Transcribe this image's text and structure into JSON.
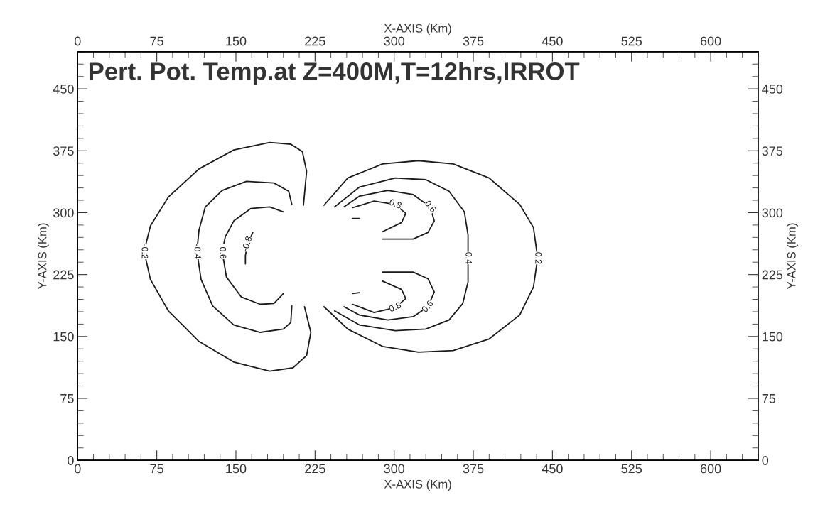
{
  "chart_data": {
    "type": "line",
    "title": "Pert. Pot. Temp.at Z=400M,T=12hrs,IRROT",
    "xlabel": "X-AXIS (Km)",
    "x2label": "X-AXIS (Km)",
    "ylabel": "Y-AXIS (Km)",
    "y2label": "Y-AXIS (Km)",
    "xlim": [
      0,
      645
    ],
    "x2lim": [
      0,
      645
    ],
    "ylim": [
      0,
      495
    ],
    "y2lim": [
      0,
      495
    ],
    "xticks": [
      0,
      {
        "value": 15,
        "label": null
      },
      {
        "value": 30,
        "label": null
      },
      {
        "value": 45,
        "label": null
      },
      {
        "value": 60,
        "label": null
      },
      75,
      {
        "value": 90,
        "label": null
      },
      {
        "value": 105,
        "label": null
      },
      {
        "value": 120,
        "label": null
      },
      {
        "value": 135,
        "label": null
      },
      150,
      {
        "value": 165,
        "label": null
      },
      {
        "value": 180,
        "label": null
      },
      {
        "value": 195,
        "label": null
      },
      {
        "value": 210,
        "label": null
      },
      225,
      {
        "value": 240,
        "label": null
      },
      {
        "value": 255,
        "label": null
      },
      {
        "value": 270,
        "label": null
      },
      {
        "value": 285,
        "label": null
      },
      300,
      {
        "value": 315,
        "label": null
      },
      {
        "value": 330,
        "label": null
      },
      {
        "value": 345,
        "label": null
      },
      {
        "value": 360,
        "label": null
      },
      375,
      {
        "value": 390,
        "label": null
      },
      {
        "value": 405,
        "label": null
      },
      {
        "value": 420,
        "label": null
      },
      {
        "value": 435,
        "label": null
      },
      450,
      {
        "value": 465,
        "label": null
      },
      {
        "value": 480,
        "label": null
      },
      {
        "value": 495,
        "label": null
      },
      {
        "value": 510,
        "label": null
      },
      525,
      {
        "value": 540,
        "label": null
      },
      {
        "value": 555,
        "label": null
      },
      {
        "value": 570,
        "label": null
      },
      {
        "value": 585,
        "label": null
      },
      600,
      {
        "value": 615,
        "label": null
      },
      {
        "value": 630,
        "label": null
      },
      {
        "value": 645,
        "label": null
      }
    ],
    "x2ticks": [
      0,
      {
        "value": 15,
        "label": null
      },
      {
        "value": 30,
        "label": null
      },
      {
        "value": 45,
        "label": null
      },
      {
        "value": 60,
        "label": null
      },
      75,
      {
        "value": 90,
        "label": null
      },
      {
        "value": 105,
        "label": null
      },
      {
        "value": 120,
        "label": null
      },
      {
        "value": 135,
        "label": null
      },
      150,
      {
        "value": 165,
        "label": null
      },
      {
        "value": 180,
        "label": null
      },
      {
        "value": 195,
        "label": null
      },
      {
        "value": 210,
        "label": null
      },
      225,
      {
        "value": 240,
        "label": null
      },
      {
        "value": 255,
        "label": null
      },
      {
        "value": 270,
        "label": null
      },
      {
        "value": 285,
        "label": null
      },
      300,
      {
        "value": 315,
        "label": null
      },
      {
        "value": 330,
        "label": null
      },
      {
        "value": 345,
        "label": null
      },
      {
        "value": 360,
        "label": null
      },
      375,
      {
        "value": 390,
        "label": null
      },
      {
        "value": 405,
        "label": null
      },
      {
        "value": 420,
        "label": null
      },
      {
        "value": 435,
        "label": null
      },
      450,
      {
        "value": 465,
        "label": null
      },
      {
        "value": 480,
        "label": null
      },
      {
        "value": 495,
        "label": null
      },
      {
        "value": 510,
        "label": null
      },
      525,
      {
        "value": 540,
        "label": null
      },
      {
        "value": 555,
        "label": null
      },
      {
        "value": 570,
        "label": null
      },
      {
        "value": 585,
        "label": null
      },
      600,
      {
        "value": 615,
        "label": null
      },
      {
        "value": 630,
        "label": null
      },
      {
        "value": 645,
        "label": null
      }
    ],
    "yticks": [
      0,
      {
        "value": 15,
        "label": null
      },
      {
        "value": 30,
        "label": null
      },
      {
        "value": 45,
        "label": null
      },
      {
        "value": 60,
        "label": null
      },
      75,
      {
        "value": 90,
        "label": null
      },
      {
        "value": 105,
        "label": null
      },
      {
        "value": 120,
        "label": null
      },
      {
        "value": 135,
        "label": null
      },
      150,
      {
        "value": 165,
        "label": null
      },
      {
        "value": 180,
        "label": null
      },
      {
        "value": 195,
        "label": null
      },
      {
        "value": 210,
        "label": null
      },
      225,
      {
        "value": 240,
        "label": null
      },
      {
        "value": 255,
        "label": null
      },
      {
        "value": 270,
        "label": null
      },
      {
        "value": 285,
        "label": null
      },
      300,
      {
        "value": 315,
        "label": null
      },
      {
        "value": 330,
        "label": null
      },
      {
        "value": 345,
        "label": null
      },
      {
        "value": 360,
        "label": null
      },
      375,
      {
        "value": 390,
        "label": null
      },
      {
        "value": 405,
        "label": null
      },
      {
        "value": 420,
        "label": null
      },
      {
        "value": 435,
        "label": null
      },
      450,
      {
        "value": 465,
        "label": null
      },
      {
        "value": 480,
        "label": null
      },
      {
        "value": 495,
        "label": null
      }
    ],
    "y2ticks": [
      0,
      {
        "value": 15,
        "label": null
      },
      {
        "value": 30,
        "label": null
      },
      {
        "value": 45,
        "label": null
      },
      {
        "value": 60,
        "label": null
      },
      75,
      {
        "value": 90,
        "label": null
      },
      {
        "value": 105,
        "label": null
      },
      {
        "value": 120,
        "label": null
      },
      {
        "value": 135,
        "label": null
      },
      150,
      {
        "value": 165,
        "label": null
      },
      {
        "value": 180,
        "label": null
      },
      {
        "value": 195,
        "label": null
      },
      {
        "value": 210,
        "label": null
      },
      225,
      {
        "value": 240,
        "label": null
      },
      {
        "value": 255,
        "label": null
      },
      {
        "value": 270,
        "label": null
      },
      {
        "value": 285,
        "label": null
      },
      300,
      {
        "value": 315,
        "label": null
      },
      {
        "value": 330,
        "label": null
      },
      {
        "value": 345,
        "label": null
      },
      {
        "value": 360,
        "label": null
      },
      375,
      {
        "value": 390,
        "label": null
      },
      {
        "value": 405,
        "label": null
      },
      {
        "value": 420,
        "label": null
      },
      {
        "value": 435,
        "label": null
      },
      450,
      {
        "value": 465,
        "label": null
      },
      {
        "value": 480,
        "label": null
      },
      {
        "value": 495,
        "label": null
      }
    ],
    "series": [
      {
        "color": "#1a1a1a",
        "x": [
          214,
          217,
          213,
          202,
          182,
          148,
          115,
          86,
          69,
          63,
          69,
          86,
          115,
          148,
          182,
          204,
          217,
          221,
          215
        ],
        "values": [
          309,
          350,
          374,
          383,
          385,
          376,
          353,
          319,
          284,
          253,
          219,
          181,
          144,
          119,
          108,
          112,
          127,
          155,
          186
        ]
      },
      {
        "color": "#1a1a1a",
        "x": [
          203,
          200,
          186,
          160,
          137,
          121,
          115,
          113,
          117,
          128,
          148,
          173,
          195,
          202,
          203
        ],
        "values": [
          310,
          326,
          336,
          338,
          327,
          307,
          279,
          253,
          219,
          187,
          164,
          155,
          159,
          167,
          187
        ]
      },
      {
        "color": "#1a1a1a",
        "x": [
          195,
          182,
          164,
          148,
          140,
          137,
          141,
          155,
          173,
          186,
          195
        ],
        "values": [
          301,
          307,
          305,
          290,
          271,
          253,
          222,
          198,
          189,
          190,
          202
        ]
      },
      {
        "color": "#1a1a1a",
        "x": [
          166,
          161,
          159,
          159
        ],
        "values": [
          276,
          262,
          248,
          238
        ]
      },
      {
        "color": "#1a1a1a",
        "x": [
          233.5,
          256,
          289,
          323,
          356,
          390,
          419,
          432,
          436,
          432,
          419,
          390,
          356,
          323,
          289,
          256,
          233.5
        ],
        "values": [
          309,
          342,
          359,
          363,
          359,
          342,
          310,
          282,
          245,
          210,
          176,
          147,
          133,
          131,
          138,
          159,
          186
        ]
      },
      {
        "color": "#1a1a1a",
        "x": [
          243.5,
          267,
          301,
          330,
          352,
          366.5,
          370,
          370,
          370,
          365,
          352,
          330,
          301,
          267,
          243.5
        ],
        "values": [
          307,
          331,
          342,
          340,
          326,
          301,
          273,
          245,
          216,
          190,
          170,
          159,
          157,
          164,
          181
        ]
      },
      {
        "color": "#1a1a1a",
        "x": [
          252.5,
          267,
          294,
          318,
          334,
          338,
          332,
          318,
          289
        ],
        "values": [
          307,
          320,
          327,
          322,
          307,
          290,
          276,
          268,
          268
        ]
      },
      {
        "color": "#1a1a1a",
        "x": [
          289,
          318,
          332,
          338,
          332,
          318,
          294,
          267,
          252.5
        ],
        "values": [
          228,
          228,
          220,
          204,
          186,
          174,
          170,
          176,
          186
        ]
      },
      {
        "color": "#1a1a1a",
        "x": [
          260.5,
          281,
          301,
          311,
          307,
          289
        ],
        "values": [
          306,
          314,
          310,
          299,
          288,
          277
        ]
      },
      {
        "color": "#1a1a1a",
        "x": [
          289,
          307,
          311,
          301,
          281,
          260.5
        ],
        "values": [
          217,
          207,
          196,
          185,
          179,
          189
        ]
      },
      {
        "color": "#1a1a1a",
        "x": [
          260.5,
          267
        ],
        "values": [
          293,
          293
        ]
      },
      {
        "color": "#1a1a1a",
        "x": [
          260.5,
          267
        ],
        "values": [
          202,
          203
        ]
      }
    ],
    "annotations": [
      {
        "text": "-0.2",
        "x": 63,
        "y": 253
      },
      {
        "text": "-0.4",
        "x": 113,
        "y": 253
      },
      {
        "text": "-0.6",
        "x": 137,
        "y": 253
      },
      {
        "text": "-0.8",
        "x": 161,
        "y": 262
      },
      {
        "text": "0.2",
        "x": 436,
        "y": 245
      },
      {
        "text": "0.4",
        "x": 370,
        "y": 245
      },
      {
        "text": "0.6",
        "x": 334,
        "y": 307
      },
      {
        "text": "0.8",
        "x": 301,
        "y": 310
      },
      {
        "text": "0.8",
        "x": 301,
        "y": 185
      },
      {
        "text": "0.6",
        "x": 332,
        "y": 186
      }
    ]
  }
}
